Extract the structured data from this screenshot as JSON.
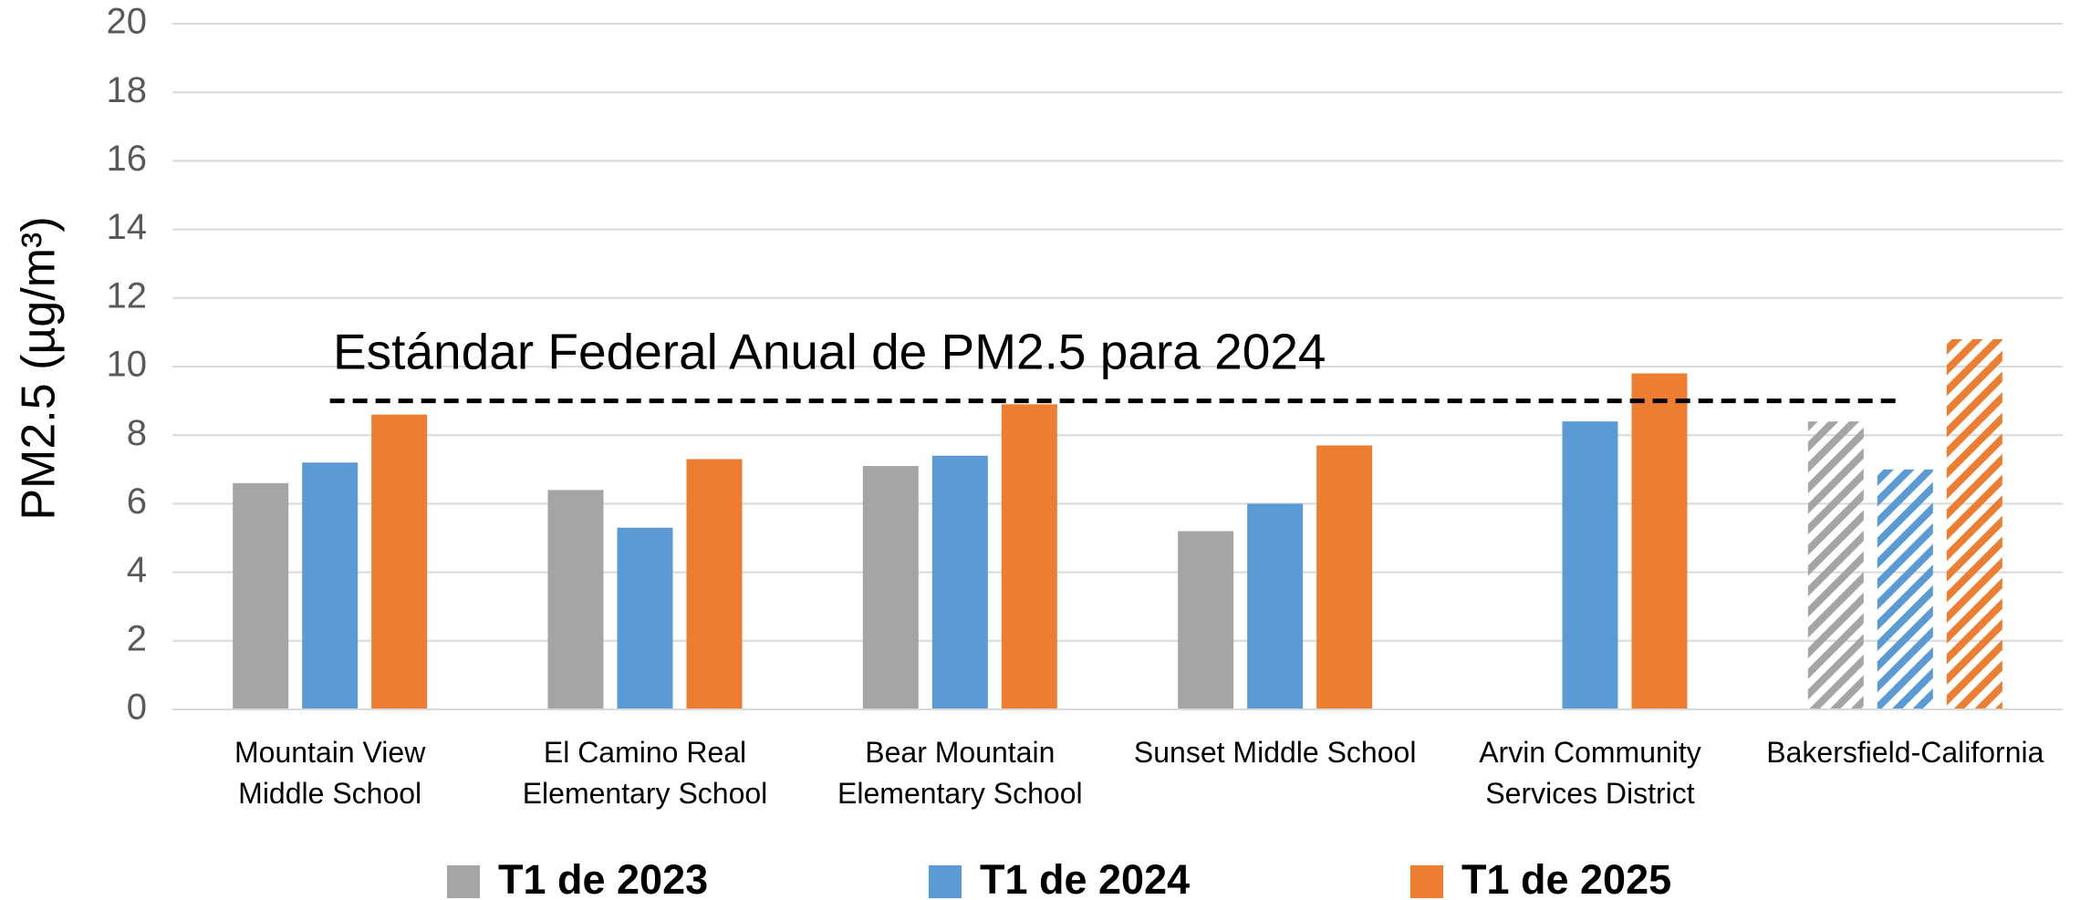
{
  "chart_data": {
    "type": "bar",
    "y_label": "PM2.5 (µg/m³)",
    "categories": [
      "Mountain View\nMiddle School",
      "El Camino Real\nElementary School",
      "Bear Mountain\nElementary School",
      "Sunset Middle School",
      "Arvin Community\nServices District",
      "Bakersfield-California"
    ],
    "series": [
      {
        "name": "T1 de 2023",
        "color": "#a5a5a5",
        "values": [
          6.6,
          6.4,
          7.1,
          5.2,
          null,
          8.4
        ]
      },
      {
        "name": "T1 de 2024",
        "color": "#5b9bd5",
        "values": [
          7.2,
          5.3,
          7.4,
          6.0,
          8.4,
          7.0
        ]
      },
      {
        "name": "T1 de 2025",
        "color": "#ed7d31",
        "values": [
          8.6,
          7.3,
          8.9,
          7.7,
          9.8,
          10.8
        ]
      }
    ],
    "hatched_categories": [
      5
    ],
    "reference_line": {
      "label": "Estándar Federal Anual de PM2.5 para 2024",
      "value": 9
    },
    "ylim": [
      0,
      20
    ],
    "yticks": [
      0,
      2,
      4,
      6,
      8,
      10,
      12,
      14,
      16,
      18,
      20
    ],
    "grid": true,
    "legend": "bottom"
  }
}
